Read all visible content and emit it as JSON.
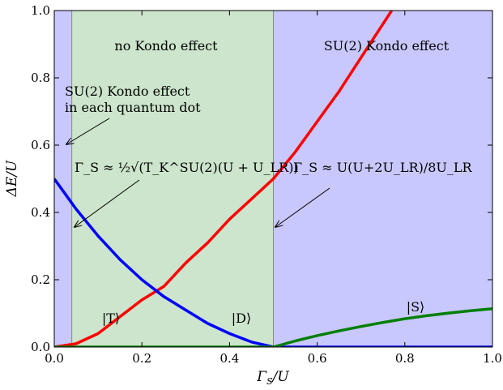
{
  "chart_data": {
    "type": "line",
    "xlabel_main": "Γ",
    "xlabel_sub": "S",
    "xlabel_rest": "/U",
    "ylabel": "ΔE/U",
    "xlim": [
      0,
      1
    ],
    "ylim": [
      0,
      1
    ],
    "x_ticks": [
      0,
      0.2,
      0.4,
      0.6,
      0.8,
      1.0
    ],
    "x_tick_labels": [
      "0.0",
      "0.2",
      "0.4",
      "0.6",
      "0.8",
      "1.0"
    ],
    "y_ticks": [
      0,
      0.2,
      0.4,
      0.6,
      0.8,
      1.0
    ],
    "y_tick_labels": [
      "0.0",
      "0.2",
      "0.4",
      "0.6",
      "0.8",
      "1.0"
    ],
    "grid": false,
    "regions": [
      {
        "x0": 0,
        "x1": 0.04,
        "color": "#c8c8ff"
      },
      {
        "x0": 0.04,
        "x1": 0.5,
        "color": "#cce5cc"
      },
      {
        "x0": 0.5,
        "x1": 1.0,
        "color": "#c8c8ff"
      }
    ],
    "region_labels": {
      "no_kondo": "no Kondo effect",
      "su2_kondo": "SU(2) Kondo effect",
      "each_dot_line1": "SU(2) Kondo effect",
      "each_dot_line2": "in each quantum dot"
    },
    "formula_left": "Γ_S ≈ ½√(T_K^SU(2)(U + U_LR))",
    "formula_right": "Γ_S ≈ U(U+2U_LR)/8U_LR",
    "series": [
      {
        "name": "|T⟩",
        "color": "#ff0000",
        "x": [
          0,
          0.05,
          0.1,
          0.15,
          0.2,
          0.25,
          0.3,
          0.35,
          0.4,
          0.45,
          0.5,
          0.55,
          0.6,
          0.65,
          0.7,
          0.75,
          0.77
        ],
        "y": [
          0,
          0.01,
          0.04,
          0.09,
          0.14,
          0.18,
          0.25,
          0.31,
          0.38,
          0.44,
          0.5,
          0.58,
          0.67,
          0.76,
          0.86,
          0.96,
          1.0
        ]
      },
      {
        "name": "|D⟩",
        "color": "#0000ff",
        "x": [
          0,
          0.05,
          0.1,
          0.15,
          0.2,
          0.25,
          0.3,
          0.35,
          0.4,
          0.45,
          0.5,
          0.6,
          0.7,
          0.8,
          0.9,
          1.0
        ],
        "y": [
          0.5,
          0.41,
          0.33,
          0.26,
          0.2,
          0.15,
          0.11,
          0.07,
          0.04,
          0.015,
          0,
          0,
          0,
          0,
          0,
          0
        ]
      },
      {
        "name": "|S⟩",
        "color": "#007f00",
        "x": [
          0,
          0.1,
          0.2,
          0.3,
          0.4,
          0.5,
          0.55,
          0.6,
          0.65,
          0.7,
          0.75,
          0.8,
          0.85,
          0.9,
          0.95,
          1.0
        ],
        "y": [
          0,
          0,
          0,
          0,
          0,
          0,
          0.018,
          0.034,
          0.048,
          0.061,
          0.073,
          0.084,
          0.093,
          0.101,
          0.108,
          0.114
        ]
      }
    ],
    "state_labels": [
      "|T⟩",
      "|D⟩",
      "|S⟩"
    ]
  }
}
